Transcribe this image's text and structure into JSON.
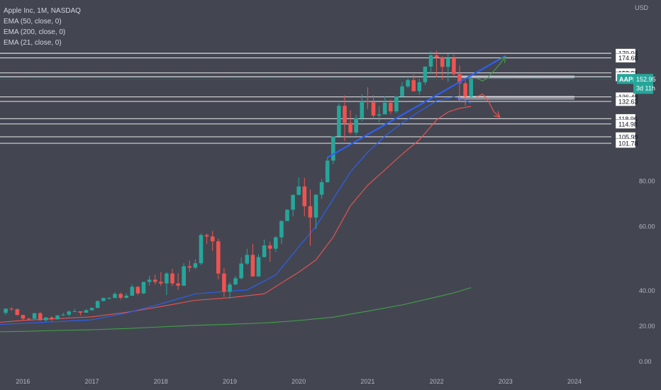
{
  "chart_data": {
    "type": "candlestick",
    "title": "Apple Inc, 1M, NASDAQ",
    "indicators": [
      "EMA (50, close, 0)",
      "EMA (200, close, 0)",
      "EMA (21, close, 0)"
    ],
    "currency": "USD",
    "ticker": "AAPL",
    "last_price": "152.95",
    "countdown": "3d 11h",
    "x_ticks": [
      "2016",
      "2017",
      "2018",
      "2019",
      "2020",
      "2021",
      "2022",
      "2023",
      "2024"
    ],
    "y_ticks_plain": [
      0,
      20,
      40,
      60,
      80
    ],
    "y_tick_labels": [
      "0.00",
      "20.00",
      "40.00",
      "60.00",
      "80.00"
    ],
    "y_scale": "log",
    "level_labels": [
      "179.94",
      "174.68",
      "158.91",
      "155.06",
      "136.48",
      "132.63",
      "118.96",
      "114.98",
      "105.99",
      "101.78"
    ],
    "levels": [
      179.94,
      174.68,
      158.91,
      155.06,
      136.48,
      132.63,
      118.96,
      114.98,
      105.99,
      101.78
    ],
    "zones": [
      [
        153.5,
        156.5
      ],
      [
        134,
        137.5
      ]
    ],
    "x_start": "2015-09",
    "x_end": "2024-07",
    "candles": [
      [
        "2015-10",
        27.5,
        30.0,
        26.3,
        29.9
      ],
      [
        "2015-11",
        29.9,
        30.6,
        28.7,
        29.6
      ],
      [
        "2015-12",
        29.6,
        29.9,
        26.2,
        26.3
      ],
      [
        "2016-01",
        26.3,
        26.5,
        23.1,
        24.3
      ],
      [
        "2016-02",
        24.3,
        24.7,
        23.2,
        24.2
      ],
      [
        "2016-03",
        24.2,
        27.6,
        24.1,
        27.3
      ],
      [
        "2016-04",
        27.3,
        28.1,
        23.1,
        23.4
      ],
      [
        "2016-05",
        23.4,
        25.2,
        22.4,
        24.9
      ],
      [
        "2016-06",
        24.9,
        25.5,
        22.9,
        23.9
      ],
      [
        "2016-07",
        23.9,
        26.1,
        23.7,
        26.1
      ],
      [
        "2016-08",
        26.1,
        27.6,
        25.7,
        26.5
      ],
      [
        "2016-09",
        26.5,
        29.0,
        25.6,
        28.3
      ],
      [
        "2016-10",
        28.3,
        29.7,
        28.1,
        28.4
      ],
      [
        "2016-11",
        28.4,
        28.4,
        26.0,
        27.6
      ],
      [
        "2016-12",
        27.6,
        29.5,
        27.6,
        29.0
      ],
      [
        "2017-01",
        29.0,
        30.6,
        28.7,
        30.3
      ],
      [
        "2017-02",
        30.3,
        34.4,
        30.2,
        34.2
      ],
      [
        "2017-03",
        34.2,
        36.1,
        34.0,
        35.9
      ],
      [
        "2017-04",
        35.9,
        36.4,
        35.0,
        35.9
      ],
      [
        "2017-05",
        35.9,
        39.2,
        35.9,
        38.2
      ],
      [
        "2017-06",
        38.2,
        39.0,
        35.0,
        36.0
      ],
      [
        "2017-07",
        36.0,
        38.5,
        35.6,
        37.2
      ],
      [
        "2017-08",
        37.2,
        41.6,
        37.1,
        41.0
      ],
      [
        "2017-09",
        41.0,
        41.2,
        37.6,
        38.5
      ],
      [
        "2017-10",
        38.5,
        42.2,
        38.2,
        42.3
      ],
      [
        "2017-11",
        42.3,
        43.9,
        41.3,
        42.9
      ],
      [
        "2017-12",
        42.9,
        44.3,
        41.6,
        42.3
      ],
      [
        "2018-01",
        42.3,
        45.0,
        41.2,
        41.9
      ],
      [
        "2018-02",
        41.9,
        45.0,
        37.6,
        44.6
      ],
      [
        "2018-03",
        44.6,
        45.9,
        41.2,
        41.9
      ],
      [
        "2018-04",
        41.9,
        44.7,
        40.2,
        41.3
      ],
      [
        "2018-05",
        41.3,
        47.6,
        41.3,
        46.7
      ],
      [
        "2018-06",
        46.7,
        48.5,
        45.2,
        46.3
      ],
      [
        "2018-07",
        46.3,
        48.8,
        45.9,
        47.6
      ],
      [
        "2018-08",
        47.6,
        57.4,
        47.1,
        56.9
      ],
      [
        "2018-09",
        56.9,
        57.4,
        53.8,
        56.4
      ],
      [
        "2018-10",
        56.4,
        58.4,
        51.5,
        54.7
      ],
      [
        "2018-11",
        54.7,
        55.6,
        43.0,
        44.6
      ],
      [
        "2018-12",
        44.6,
        46.2,
        36.6,
        39.4
      ],
      [
        "2019-01",
        39.4,
        42.2,
        35.5,
        41.6
      ],
      [
        "2019-02",
        41.6,
        43.9,
        41.5,
        43.3
      ],
      [
        "2019-03",
        43.3,
        49.4,
        43.0,
        47.5
      ],
      [
        "2019-04",
        47.5,
        52.1,
        47.1,
        50.2
      ],
      [
        "2019-05",
        50.2,
        53.8,
        43.7,
        43.8
      ],
      [
        "2019-06",
        43.8,
        50.4,
        43.7,
        49.5
      ],
      [
        "2019-07",
        49.5,
        55.3,
        49.4,
        53.3
      ],
      [
        "2019-08",
        53.3,
        54.5,
        48.1,
        52.2
      ],
      [
        "2019-09",
        52.2,
        56.6,
        51.1,
        56.1
      ],
      [
        "2019-10",
        56.1,
        62.4,
        53.8,
        62.2
      ],
      [
        "2019-11",
        62.2,
        67.0,
        62.3,
        66.8
      ],
      [
        "2019-12",
        66.8,
        73.5,
        64.1,
        73.4
      ],
      [
        "2020-01",
        73.4,
        81.9,
        73.2,
        77.4
      ],
      [
        "2020-02",
        77.4,
        81.8,
        64.1,
        68.3
      ],
      [
        "2020-03",
        68.3,
        76.0,
        53.2,
        63.6
      ],
      [
        "2020-04",
        63.6,
        73.6,
        59.2,
        73.5
      ],
      [
        "2020-05",
        73.5,
        81.1,
        71.6,
        79.5
      ],
      [
        "2020-06",
        79.5,
        93.1,
        79.3,
        91.2
      ],
      [
        "2020-07",
        91.2,
        106.4,
        89.1,
        106.3
      ],
      [
        "2020-08",
        106.3,
        131.0,
        107.9,
        129.0
      ],
      [
        "2020-09",
        129.0,
        137.9,
        103.1,
        115.8
      ],
      [
        "2020-10",
        115.8,
        125.4,
        107.7,
        108.9
      ],
      [
        "2020-11",
        108.9,
        121.9,
        107.3,
        119.1
      ],
      [
        "2020-12",
        119.1,
        138.8,
        117.0,
        132.7
      ],
      [
        "2021-01",
        132.7,
        145.1,
        126.4,
        131.9
      ],
      [
        "2021-02",
        131.9,
        137.9,
        118.4,
        121.3
      ],
      [
        "2021-03",
        121.3,
        128.7,
        116.2,
        122.2
      ],
      [
        "2021-04",
        122.2,
        137.1,
        122.5,
        131.5
      ],
      [
        "2021-05",
        131.5,
        134.1,
        122.3,
        124.6
      ],
      [
        "2021-06",
        124.6,
        137.4,
        123.1,
        136.9
      ],
      [
        "2021-07",
        136.9,
        150.0,
        135.8,
        145.9
      ],
      [
        "2021-08",
        145.9,
        153.5,
        144.5,
        151.8
      ],
      [
        "2021-09",
        151.8,
        157.3,
        141.3,
        141.5
      ],
      [
        "2021-10",
        141.5,
        153.2,
        138.3,
        149.8
      ],
      [
        "2021-11",
        149.8,
        165.7,
        147.5,
        165.3
      ],
      [
        "2021-12",
        165.3,
        182.1,
        157.8,
        177.6
      ],
      [
        "2022-01",
        177.6,
        182.9,
        154.7,
        174.8
      ],
      [
        "2022-02",
        174.8,
        176.6,
        152.0,
        165.1
      ],
      [
        "2022-03",
        165.1,
        179.6,
        150.1,
        174.6
      ],
      [
        "2022-04",
        174.6,
        178.5,
        156.0,
        157.7
      ],
      [
        "2022-05",
        157.7,
        166.5,
        132.6,
        148.8
      ],
      [
        "2022-06",
        148.8,
        151.7,
        129.0,
        136.7
      ],
      [
        "2022-07",
        136.7,
        157.3,
        135.7,
        152.95
      ]
    ],
    "ema50": [
      [
        "2015-09",
        22.2
      ],
      [
        "2016-01",
        23.3
      ],
      [
        "2016-07",
        24.3
      ],
      [
        "2017-01",
        25.3
      ],
      [
        "2017-07",
        27.8
      ],
      [
        "2018-01",
        31.1
      ],
      [
        "2018-07",
        34.6
      ],
      [
        "2019-01",
        36.1
      ],
      [
        "2019-07",
        38.3
      ],
      [
        "2020-01",
        45.0
      ],
      [
        "2020-04",
        48.6
      ],
      [
        "2020-07",
        56.2
      ],
      [
        "2020-10",
        68.5
      ],
      [
        "2021-01",
        78.0
      ],
      [
        "2021-04",
        86.0
      ],
      [
        "2021-07",
        95.0
      ],
      [
        "2021-10",
        104.0
      ],
      [
        "2022-01",
        118.0
      ],
      [
        "2022-03",
        124.0
      ],
      [
        "2022-05",
        127.0
      ],
      [
        "2022-07",
        128.5
      ]
    ],
    "ema200": [
      [
        "2015-09",
        16.9
      ],
      [
        "2016-01",
        17.1
      ],
      [
        "2016-07",
        17.6
      ],
      [
        "2017-01",
        18.0
      ],
      [
        "2017-07",
        18.7
      ],
      [
        "2018-01",
        19.6
      ],
      [
        "2018-07",
        20.5
      ],
      [
        "2019-01",
        21.1
      ],
      [
        "2019-07",
        21.8
      ],
      [
        "2020-01",
        23.2
      ],
      [
        "2020-07",
        25.1
      ],
      [
        "2021-01",
        28.5
      ],
      [
        "2021-07",
        32.0
      ],
      [
        "2022-01",
        36.5
      ],
      [
        "2022-04",
        38.8
      ],
      [
        "2022-07",
        40.8
      ]
    ],
    "ema21": [
      [
        "2015-09",
        21.0
      ],
      [
        "2016-01",
        21.6
      ],
      [
        "2016-07",
        22.6
      ],
      [
        "2017-01",
        23.6
      ],
      [
        "2017-07",
        27.4
      ],
      [
        "2018-01",
        32.6
      ],
      [
        "2018-07",
        38.2
      ],
      [
        "2018-12",
        39.6
      ],
      [
        "2019-04",
        40.2
      ],
      [
        "2019-09",
        44.2
      ],
      [
        "2020-01",
        52.8
      ],
      [
        "2020-04",
        60.1
      ],
      [
        "2020-07",
        71.5
      ],
      [
        "2020-10",
        84.8
      ],
      [
        "2021-01",
        96.2
      ],
      [
        "2021-04",
        106.4
      ],
      [
        "2021-07",
        115.8
      ],
      [
        "2021-10",
        124.5
      ],
      [
        "2022-01",
        133.2
      ],
      [
        "2022-04",
        136.4
      ],
      [
        "2022-06",
        133.6
      ],
      [
        "2022-07",
        131.0
      ]
    ],
    "trendline": [
      [
        "2020-06",
        93.0
      ],
      [
        "2023-01",
        177.0
      ]
    ],
    "projections": [
      {
        "path": [
          [
            "2022-08",
            153.5
          ],
          [
            "2022-09",
            151.0
          ],
          [
            "2022-10",
            154.5
          ],
          [
            "2022-12",
            168.0
          ],
          [
            "2023-01",
            176.0
          ]
        ],
        "direction": "up"
      },
      {
        "path": [
          [
            "2022-08",
            136.5
          ],
          [
            "2022-09",
            139.0
          ],
          [
            "2022-10",
            133.0
          ],
          [
            "2022-11",
            124.0
          ],
          [
            "2022-12",
            120.0
          ]
        ],
        "direction": "down"
      }
    ],
    "colors": {
      "up": "#26a69a",
      "down": "#ef5350",
      "ema50": "#ef5350",
      "ema200": "#43a047",
      "ema21": "#2962ff",
      "trendline": "#2962ff",
      "level": "#ffffff",
      "zone": "#9598a1",
      "up_projection": "#43a047",
      "down_projection": "#ef5350",
      "price_tag": "#26a69a",
      "background": "#434651"
    }
  }
}
